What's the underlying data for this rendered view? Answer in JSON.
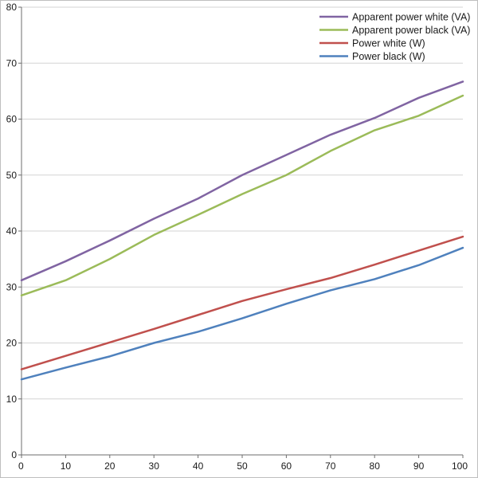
{
  "chart_data": {
    "type": "line",
    "title": "",
    "xlabel": "",
    "ylabel": "",
    "x_range": [
      0,
      100
    ],
    "y_range": [
      0,
      80
    ],
    "x_ticks": [
      0,
      10,
      20,
      30,
      40,
      50,
      60,
      70,
      80,
      90,
      100
    ],
    "y_ticks": [
      0,
      10,
      20,
      30,
      40,
      50,
      60,
      70,
      80
    ],
    "grid": "horizontal",
    "legend_position": "top-right",
    "x": [
      0,
      10,
      20,
      30,
      40,
      50,
      60,
      70,
      80,
      90,
      100
    ],
    "series": [
      {
        "name": "Apparent power white (VA)",
        "color": "#8064A2",
        "values": [
          31.2,
          34.6,
          38.3,
          42.2,
          45.8,
          50.0,
          53.6,
          57.2,
          60.2,
          63.8,
          66.7
        ]
      },
      {
        "name": "Apparent power black (VA)",
        "color": "#9BBB59",
        "values": [
          28.5,
          31.2,
          35.0,
          39.3,
          42.9,
          46.6,
          50.0,
          54.3,
          58.0,
          60.6,
          64.2
        ]
      },
      {
        "name": "Power white (W)",
        "color": "#C0504D",
        "values": [
          15.3,
          17.7,
          20.1,
          22.5,
          25.0,
          27.5,
          29.6,
          31.6,
          34.0,
          36.5,
          39.0
        ]
      },
      {
        "name": "Power black (W)",
        "color": "#4F81BD",
        "values": [
          13.5,
          15.6,
          17.6,
          20.0,
          22.0,
          24.4,
          27.0,
          29.4,
          31.4,
          33.9,
          37.0
        ]
      }
    ],
    "colors": {
      "gridline": "#d3d3d3",
      "axis": "#6e6e6e",
      "text": "#1a1a1a"
    }
  }
}
